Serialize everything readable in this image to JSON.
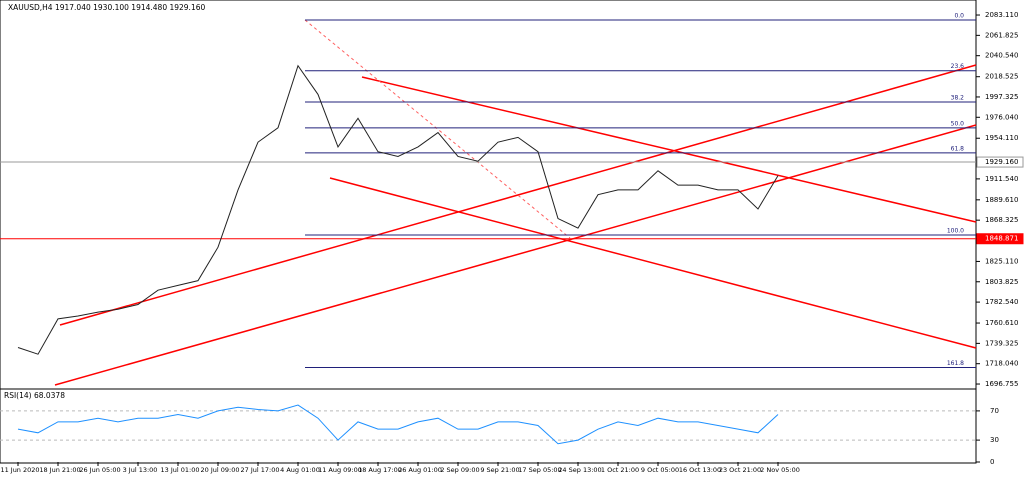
{
  "chart_data": [
    {
      "type": "line",
      "title": "XAUUSD,H4  1917.040 1930.100 1914.480 1929.160",
      "color": "#222222",
      "categories": [
        "11 Jun 2020",
        null,
        "18 Jun 21:00",
        null,
        "26 Jun 05:00",
        null,
        "3 Jul 13:00",
        null,
        "13 Jul 01:00",
        null,
        "20 Jul 09:00",
        null,
        "27 Jul 17:00",
        null,
        "4 Aug 01:00",
        null,
        "11 Aug 09:00",
        null,
        "18 Aug 17:00",
        null,
        "26 Aug 01:00",
        null,
        "2 Sep 09:00",
        null,
        "9 Sep 21:00",
        null,
        "17 Sep 05:00",
        null,
        "24 Sep 13:00",
        null,
        "1 Oct 21:00",
        null,
        "9 Oct 05:00",
        null,
        "16 Oct 13:00",
        null,
        "23 Oct 21:00",
        null,
        "2 Nov 05:00",
        null
      ],
      "values": [
        1735,
        1728,
        1765,
        1768,
        1772,
        1775,
        1780,
        1795,
        1800,
        1805,
        1840,
        1900,
        1950,
        1965,
        2030,
        2000,
        1945,
        1975,
        1940,
        1935,
        1945,
        1960,
        1935,
        1930,
        1950,
        1955,
        1940,
        1870,
        1860,
        1895,
        1900,
        1900,
        1920,
        1905,
        1905,
        1900,
        1900,
        1880,
        1915,
        null
      ],
      "ylim": [
        1690.5,
        2095.7
      ],
      "yticks": [
        {
          "value": 2083.11,
          "label": "2083.110"
        },
        {
          "value": 2061.825,
          "label": "2061.825"
        },
        {
          "value": 2040.54,
          "label": "2040.540"
        },
        {
          "value": 2018.525,
          "label": "2018.525"
        },
        {
          "value": 1997.325,
          "label": "1997.325"
        },
        {
          "value": 1976.04,
          "label": "1976.040"
        },
        {
          "value": 1954.11,
          "label": "1954.110"
        },
        {
          "value": 1911.54,
          "label": "1911.540"
        },
        {
          "value": 1889.61,
          "label": "1889.610"
        },
        {
          "value": 1868.325,
          "label": "1868.325"
        },
        {
          "value": 1825.11,
          "label": "1825.110"
        },
        {
          "value": 1803.825,
          "label": "1803.825"
        },
        {
          "value": 1782.54,
          "label": "1782.540"
        },
        {
          "value": 1760.61,
          "label": "1760.610"
        },
        {
          "value": 1739.325,
          "label": "1739.325"
        },
        {
          "value": 1718.04,
          "label": "1718.040"
        },
        {
          "value": 1696.755,
          "label": "1696.755"
        }
      ],
      "fib_color": "#20207a",
      "fib_levels": [
        {
          "value": 2077.9,
          "label": "0.0"
        },
        {
          "value": 2024.8,
          "label": "23.6"
        },
        {
          "value": 1992,
          "label": "38.2"
        },
        {
          "value": 1965,
          "label": "50.0"
        },
        {
          "value": 1938.8,
          "label": "61.8"
        },
        {
          "value": 1852.8,
          "label": "100.0"
        },
        {
          "value": 1714,
          "label": "161.8"
        }
      ],
      "price_lines": [
        {
          "value": 1929.16,
          "label": "1929.160",
          "color": "#999999"
        },
        {
          "value": 1848.871,
          "label": "1848.871",
          "color": "#ff0000"
        }
      ]
    },
    {
      "type": "line",
      "title": "RSI(14) 68.0378",
      "color": "#1e90ff",
      "values": [
        45,
        40,
        55,
        55,
        60,
        55,
        60,
        60,
        65,
        60,
        70,
        75,
        72,
        70,
        78,
        60,
        30,
        55,
        45,
        45,
        55,
        60,
        45,
        45,
        55,
        55,
        50,
        25,
        30,
        45,
        55,
        50,
        60,
        55,
        55,
        50,
        45,
        40,
        65,
        null
      ],
      "ylim": [
        0,
        100
      ],
      "yticks": [
        0,
        30,
        70
      ]
    }
  ]
}
